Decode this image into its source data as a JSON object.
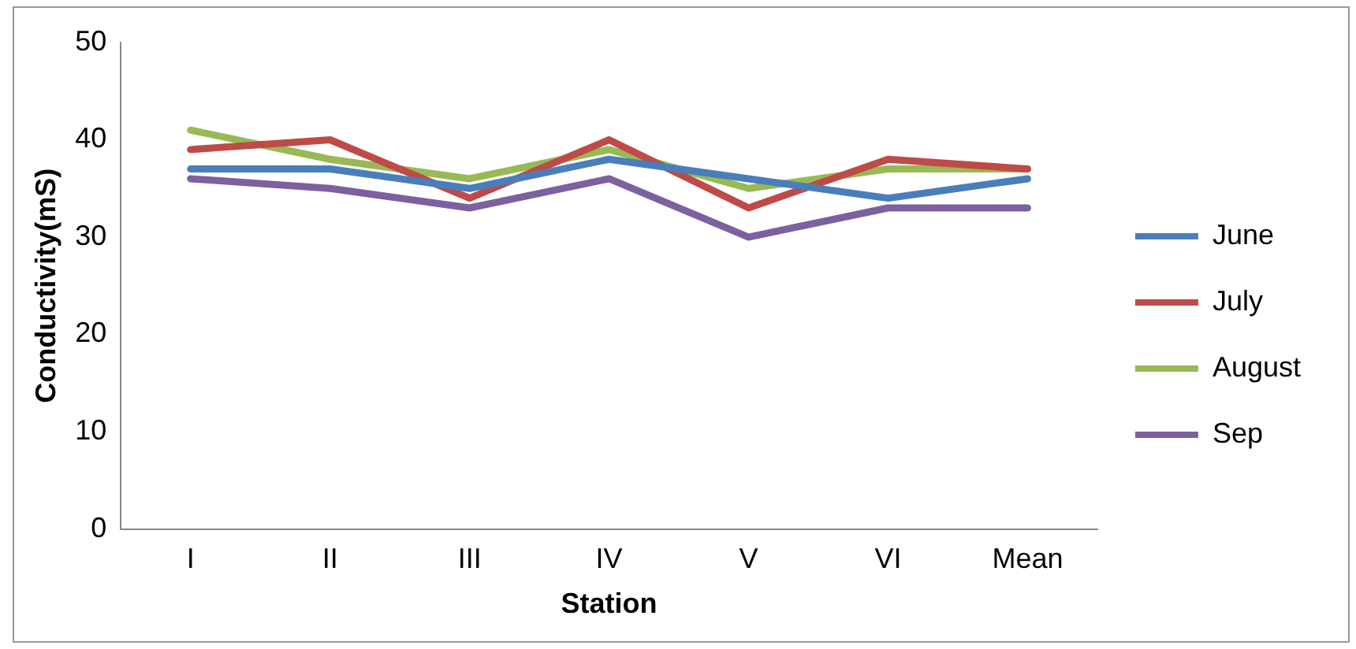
{
  "chart_data": {
    "type": "line",
    "xlabel": "Station",
    "ylabel": "Conductivity(mS)",
    "categories": [
      "I",
      "II",
      "III",
      "IV",
      "V",
      "VI",
      "Mean"
    ],
    "series": [
      {
        "name": "June",
        "color": "#4a7ebb",
        "values": [
          37,
          37,
          35,
          38,
          36,
          34,
          36
        ]
      },
      {
        "name": "July",
        "color": "#be4b48",
        "values": [
          39,
          40,
          34,
          40,
          33,
          38,
          37
        ]
      },
      {
        "name": "August",
        "color": "#98b954",
        "values": [
          41,
          38,
          36,
          39,
          35,
          37,
          37
        ]
      },
      {
        "name": "Sep",
        "color": "#7d60a0",
        "values": [
          36,
          35,
          33,
          36,
          30,
          33,
          33
        ]
      }
    ],
    "ylim": [
      0,
      50
    ],
    "yticks": [
      0,
      10,
      20,
      30,
      40,
      50
    ],
    "grid": false,
    "legend": "right",
    "marker": "none",
    "line_style": "solid"
  }
}
